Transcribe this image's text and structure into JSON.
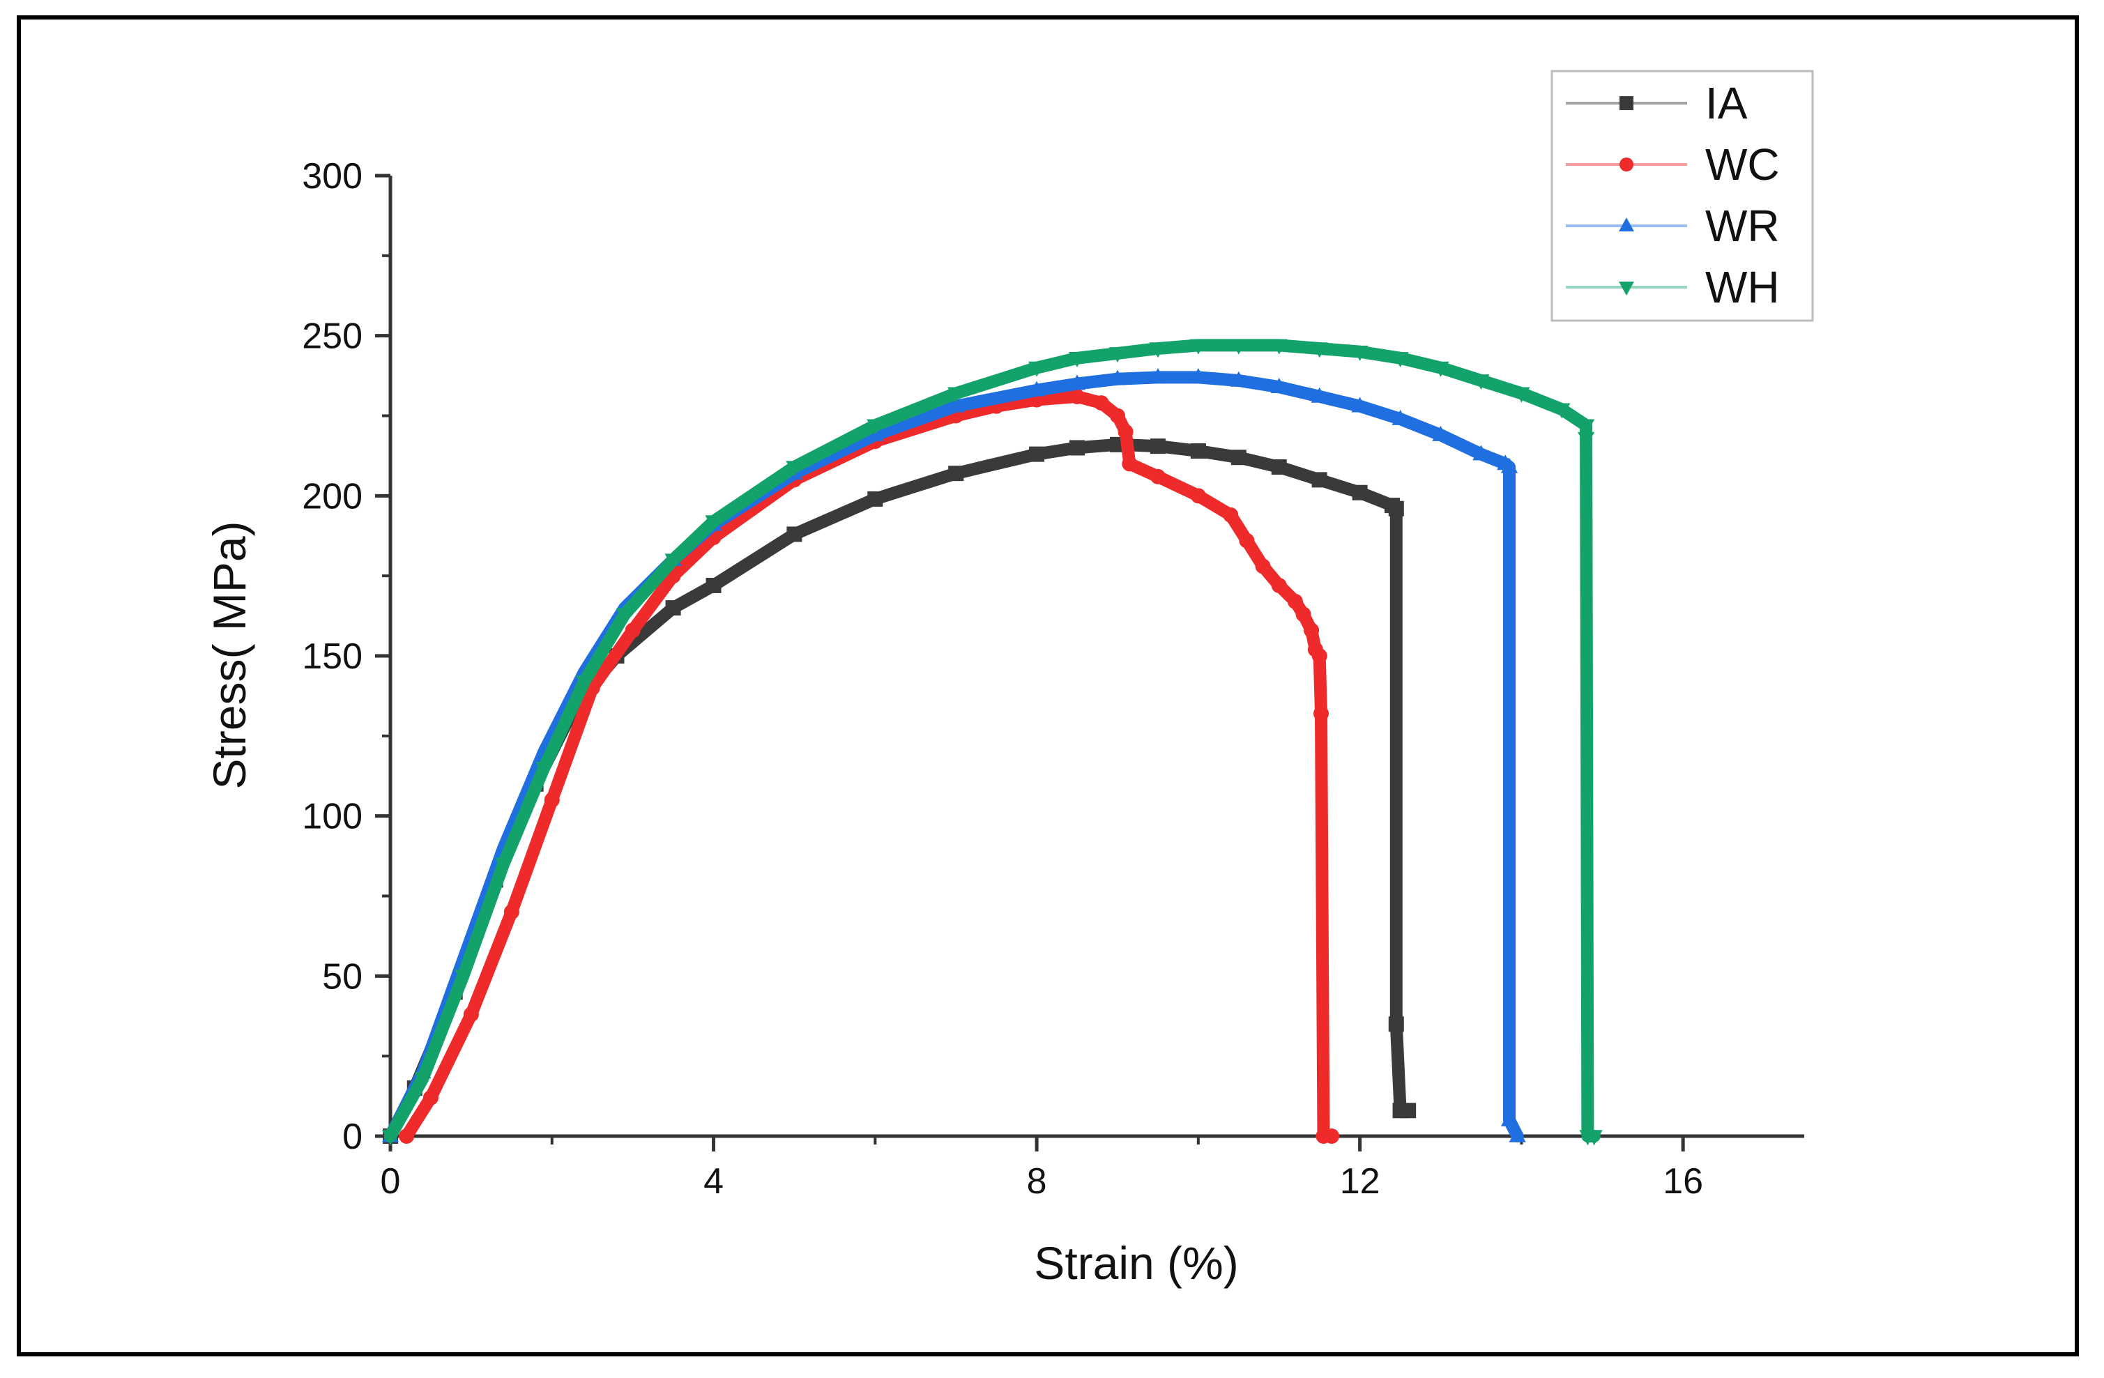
{
  "chart_data": {
    "type": "line",
    "title": "",
    "xlabel": "Strain (%)",
    "ylabel": "Stress( MPa)",
    "xlim": [
      0,
      17.5
    ],
    "ylim": [
      0,
      300
    ],
    "xticks": [
      0,
      4,
      8,
      12,
      16
    ],
    "yticks": [
      0,
      50,
      100,
      150,
      200,
      250,
      300
    ],
    "legend_position": "top-right",
    "series": [
      {
        "name": "IA",
        "color": "#3a3a3a",
        "marker": "square",
        "points": [
          [
            0,
            0
          ],
          [
            0.3,
            15
          ],
          [
            0.8,
            45
          ],
          [
            1.3,
            80
          ],
          [
            1.8,
            110
          ],
          [
            2.3,
            135
          ],
          [
            2.8,
            150
          ],
          [
            3.5,
            165
          ],
          [
            4,
            172
          ],
          [
            5,
            188
          ],
          [
            6,
            199
          ],
          [
            7,
            207
          ],
          [
            8,
            213
          ],
          [
            8.5,
            215
          ],
          [
            9,
            216
          ],
          [
            9.5,
            215.5
          ],
          [
            10,
            214
          ],
          [
            10.5,
            212
          ],
          [
            11,
            209
          ],
          [
            11.5,
            205
          ],
          [
            12,
            201
          ],
          [
            12.4,
            197
          ],
          [
            12.45,
            196
          ],
          [
            12.45,
            35
          ],
          [
            12.5,
            8
          ],
          [
            12.6,
            8
          ]
        ]
      },
      {
        "name": "WC",
        "color": "#ee2a2a",
        "marker": "circle",
        "points": [
          [
            0.2,
            0
          ],
          [
            0.5,
            12
          ],
          [
            1,
            38
          ],
          [
            1.5,
            70
          ],
          [
            2,
            105
          ],
          [
            2.5,
            140
          ],
          [
            3,
            158
          ],
          [
            3.5,
            175
          ],
          [
            4,
            187
          ],
          [
            5,
            205
          ],
          [
            6,
            217
          ],
          [
            7,
            225
          ],
          [
            7.5,
            228
          ],
          [
            8,
            230
          ],
          [
            8.5,
            231
          ],
          [
            8.8,
            229
          ],
          [
            9,
            225
          ],
          [
            9.1,
            220
          ],
          [
            9.15,
            210
          ],
          [
            9.5,
            206
          ],
          [
            10,
            200
          ],
          [
            10.4,
            194
          ],
          [
            10.6,
            186
          ],
          [
            10.8,
            178
          ],
          [
            11,
            172
          ],
          [
            11.2,
            167
          ],
          [
            11.3,
            163
          ],
          [
            11.4,
            158
          ],
          [
            11.45,
            152
          ],
          [
            11.5,
            150
          ],
          [
            11.52,
            132
          ],
          [
            11.55,
            0
          ],
          [
            11.65,
            0
          ]
        ]
      },
      {
        "name": "WR",
        "color": "#1f6fe0",
        "marker": "triangle-up",
        "points": [
          [
            0,
            0
          ],
          [
            0.4,
            20
          ],
          [
            0.9,
            55
          ],
          [
            1.4,
            90
          ],
          [
            1.9,
            120
          ],
          [
            2.4,
            145
          ],
          [
            2.9,
            165
          ],
          [
            3.5,
            180
          ],
          [
            4,
            191
          ],
          [
            5,
            207
          ],
          [
            6,
            219
          ],
          [
            7,
            228
          ],
          [
            8,
            233
          ],
          [
            8.5,
            235
          ],
          [
            9,
            236.5
          ],
          [
            9.5,
            237
          ],
          [
            10,
            237
          ],
          [
            10.5,
            236
          ],
          [
            11,
            234
          ],
          [
            11.5,
            231
          ],
          [
            12,
            228
          ],
          [
            12.5,
            224
          ],
          [
            13,
            219
          ],
          [
            13.5,
            213
          ],
          [
            13.8,
            210
          ],
          [
            13.85,
            209
          ],
          [
            13.85,
            5
          ],
          [
            13.95,
            0
          ]
        ]
      },
      {
        "name": "WH",
        "color": "#13a36a",
        "marker": "triangle-down",
        "points": [
          [
            0,
            0
          ],
          [
            0.4,
            18
          ],
          [
            0.9,
            50
          ],
          [
            1.4,
            85
          ],
          [
            1.9,
            115
          ],
          [
            2.4,
            142
          ],
          [
            2.9,
            163
          ],
          [
            3.5,
            180
          ],
          [
            4,
            192
          ],
          [
            5,
            209
          ],
          [
            6,
            222
          ],
          [
            7,
            232
          ],
          [
            8,
            240
          ],
          [
            8.5,
            243
          ],
          [
            9,
            244.5
          ],
          [
            9.5,
            246
          ],
          [
            10,
            247
          ],
          [
            10.5,
            247
          ],
          [
            11,
            247
          ],
          [
            11.5,
            246
          ],
          [
            12,
            245
          ],
          [
            12.5,
            243
          ],
          [
            13,
            240
          ],
          [
            13.5,
            236
          ],
          [
            14,
            232
          ],
          [
            14.5,
            227
          ],
          [
            14.8,
            222
          ],
          [
            14.8,
            218
          ],
          [
            14.82,
            0
          ],
          [
            14.9,
            0
          ]
        ]
      }
    ]
  }
}
